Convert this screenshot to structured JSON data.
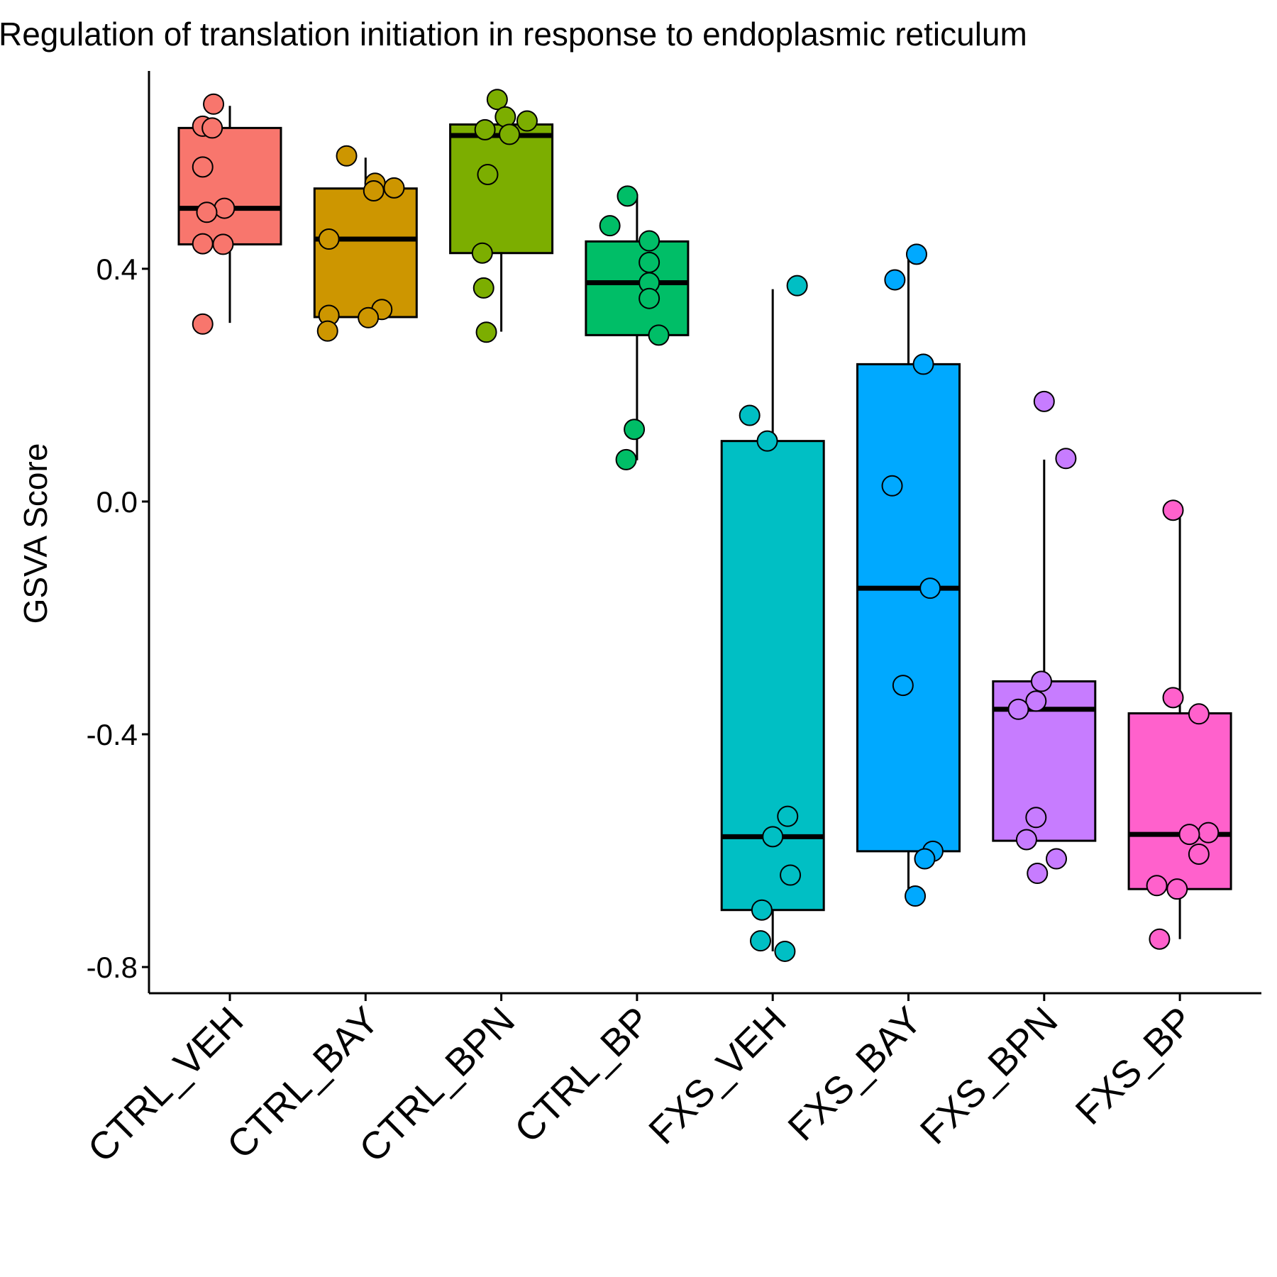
{
  "chart_data": {
    "type": "box",
    "title": "Regulation of translation initiation in response to endoplasmic reticulum",
    "ylabel": "GSVA Score",
    "xlabel": "",
    "ylim": [
      -0.845,
      0.74
    ],
    "yticks": [
      {
        "value": 0.4,
        "label": "0.4"
      },
      {
        "value": 0.0,
        "label": "0.0"
      },
      {
        "value": -0.4,
        "label": "-0.4"
      },
      {
        "value": -0.8,
        "label": "-0.8"
      }
    ],
    "legend": "none",
    "grid": false,
    "categories": [
      "CTRL_VEH",
      "CTRL_BAY",
      "CTRL_BPN",
      "CTRL_BP",
      "FXS_VEH",
      "FXS_BAY",
      "FXS_BPN",
      "FXS_BP"
    ],
    "groups": [
      {
        "name": "CTRL_VEH",
        "color": "#F8766D",
        "box": {
          "lower_whisker": 0.307,
          "q1": 0.442,
          "median": 0.504,
          "q3": 0.642,
          "upper_whisker": 0.68
        },
        "points": [
          {
            "x": -0.12,
            "y": 0.683
          },
          {
            "x": -0.2,
            "y": 0.645
          },
          {
            "x": -0.13,
            "y": 0.642
          },
          {
            "x": -0.2,
            "y": 0.575
          },
          {
            "x": -0.04,
            "y": 0.504
          },
          {
            "x": -0.17,
            "y": 0.497
          },
          {
            "x": -0.2,
            "y": 0.443
          },
          {
            "x": -0.05,
            "y": 0.442
          },
          {
            "x": -0.2,
            "y": 0.305
          }
        ]
      },
      {
        "name": "CTRL_BAY",
        "color": "#CD9600",
        "box": {
          "lower_whisker": 0.307,
          "q1": 0.317,
          "median": 0.451,
          "q3": 0.538,
          "upper_whisker": 0.591
        },
        "points": [
          {
            "x": -0.14,
            "y": 0.594
          },
          {
            "x": 0.07,
            "y": 0.547
          },
          {
            "x": 0.21,
            "y": 0.539
          },
          {
            "x": 0.06,
            "y": 0.534
          },
          {
            "x": -0.27,
            "y": 0.451
          },
          {
            "x": 0.12,
            "y": 0.33
          },
          {
            "x": -0.27,
            "y": 0.32
          },
          {
            "x": 0.02,
            "y": 0.316
          },
          {
            "x": -0.28,
            "y": 0.293
          }
        ]
      },
      {
        "name": "CTRL_BPN",
        "color": "#7CAE00",
        "box": {
          "lower_whisker": 0.292,
          "q1": 0.427,
          "median": 0.629,
          "q3": 0.648,
          "upper_whisker": 0.648
        },
        "points": [
          {
            "x": -0.03,
            "y": 0.691
          },
          {
            "x": 0.03,
            "y": 0.661
          },
          {
            "x": 0.19,
            "y": 0.654
          },
          {
            "x": -0.12,
            "y": 0.639
          },
          {
            "x": 0.06,
            "y": 0.631
          },
          {
            "x": -0.1,
            "y": 0.562
          },
          {
            "x": -0.14,
            "y": 0.427
          },
          {
            "x": -0.13,
            "y": 0.367
          },
          {
            "x": -0.11,
            "y": 0.291
          }
        ]
      },
      {
        "name": "CTRL_BP",
        "color": "#00BE67",
        "box": {
          "lower_whisker": 0.071,
          "q1": 0.286,
          "median": 0.376,
          "q3": 0.447,
          "upper_whisker": 0.528
        },
        "points": [
          {
            "x": -0.07,
            "y": 0.525
          },
          {
            "x": -0.2,
            "y": 0.474
          },
          {
            "x": 0.09,
            "y": 0.448
          },
          {
            "x": 0.09,
            "y": 0.411
          },
          {
            "x": 0.09,
            "y": 0.376
          },
          {
            "x": 0.09,
            "y": 0.349
          },
          {
            "x": 0.16,
            "y": 0.286
          },
          {
            "x": -0.02,
            "y": 0.124
          },
          {
            "x": -0.08,
            "y": 0.072
          }
        ]
      },
      {
        "name": "FXS_VEH",
        "color": "#00BFC4",
        "box": {
          "lower_whisker": -0.773,
          "q1": -0.702,
          "median": -0.576,
          "q3": 0.104,
          "upper_whisker": 0.365
        },
        "points": [
          {
            "x": 0.18,
            "y": 0.371
          },
          {
            "x": -0.17,
            "y": 0.148
          },
          {
            "x": -0.04,
            "y": 0.104
          },
          {
            "x": 0.11,
            "y": -0.541
          },
          {
            "x": 0.0,
            "y": -0.576
          },
          {
            "x": 0.13,
            "y": -0.642
          },
          {
            "x": -0.08,
            "y": -0.702
          },
          {
            "x": -0.09,
            "y": -0.755
          },
          {
            "x": 0.09,
            "y": -0.773
          }
        ]
      },
      {
        "name": "FXS_BAY",
        "color": "#00A9FF",
        "box": {
          "lower_whisker": -0.678,
          "q1": -0.601,
          "median": -0.149,
          "q3": 0.236,
          "upper_whisker": 0.418
        },
        "points": [
          {
            "x": 0.06,
            "y": 0.425
          },
          {
            "x": -0.1,
            "y": 0.381
          },
          {
            "x": 0.11,
            "y": 0.236
          },
          {
            "x": -0.12,
            "y": 0.027
          },
          {
            "x": 0.16,
            "y": -0.149
          },
          {
            "x": -0.04,
            "y": -0.316
          },
          {
            "x": 0.18,
            "y": -0.601
          },
          {
            "x": 0.12,
            "y": -0.614
          },
          {
            "x": 0.05,
            "y": -0.678
          }
        ]
      },
      {
        "name": "FXS_BPN",
        "color": "#C77CFF",
        "box": {
          "lower_whisker": -0.583,
          "q1": -0.583,
          "median": -0.357,
          "q3": -0.309,
          "upper_whisker": 0.072
        },
        "points": [
          {
            "x": 0.0,
            "y": 0.172
          },
          {
            "x": 0.16,
            "y": 0.074
          },
          {
            "x": -0.02,
            "y": -0.309
          },
          {
            "x": -0.06,
            "y": -0.343
          },
          {
            "x": -0.19,
            "y": -0.357
          },
          {
            "x": -0.06,
            "y": -0.543
          },
          {
            "x": -0.13,
            "y": -0.581
          },
          {
            "x": 0.09,
            "y": -0.614
          },
          {
            "x": -0.05,
            "y": -0.639
          }
        ]
      },
      {
        "name": "FXS_BP",
        "color": "#FF61CC",
        "box": {
          "lower_whisker": -0.752,
          "q1": -0.666,
          "median": -0.572,
          "q3": -0.364,
          "upper_whisker": -0.015
        },
        "points": [
          {
            "x": -0.05,
            "y": -0.015
          },
          {
            "x": -0.05,
            "y": -0.337
          },
          {
            "x": 0.14,
            "y": -0.365
          },
          {
            "x": 0.21,
            "y": -0.569
          },
          {
            "x": 0.07,
            "y": -0.572
          },
          {
            "x": 0.14,
            "y": -0.606
          },
          {
            "x": -0.17,
            "y": -0.66
          },
          {
            "x": -0.02,
            "y": -0.666
          },
          {
            "x": -0.15,
            "y": -0.752
          }
        ]
      }
    ]
  }
}
